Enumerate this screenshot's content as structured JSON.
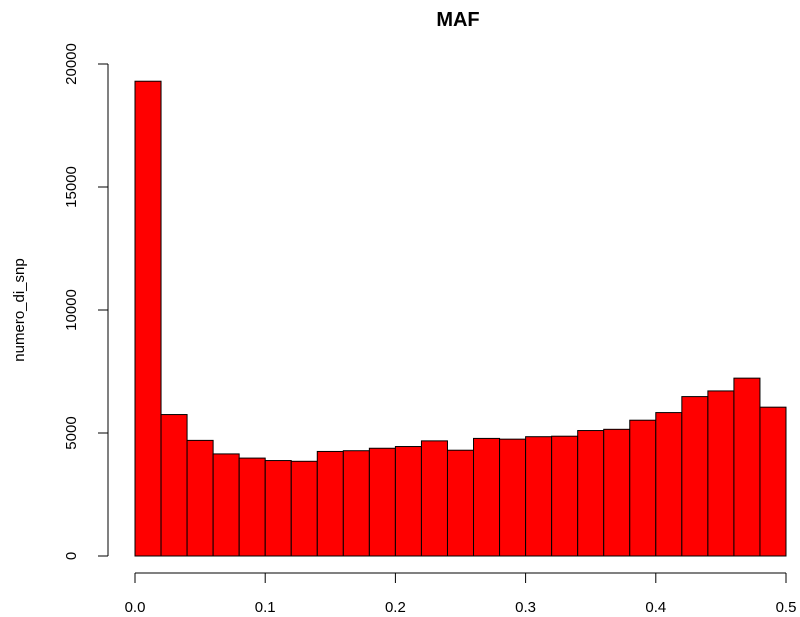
{
  "chart_data": {
    "type": "bar",
    "title": "MAF",
    "xlabel": "",
    "ylabel": "numero_di_snp",
    "bar_color": "#ff0000",
    "edge_color": "#000000",
    "xlim": [
      0,
      0.5
    ],
    "ylim": [
      0,
      20000
    ],
    "x_ticks": [
      0.0,
      0.1,
      0.2,
      0.3,
      0.4,
      0.5
    ],
    "x_tick_labels": [
      "0.0",
      "0.1",
      "0.2",
      "0.3",
      "0.4",
      "0.5"
    ],
    "y_ticks": [
      0,
      5000,
      10000,
      15000,
      20000
    ],
    "y_tick_labels": [
      "0",
      "5000",
      "10000",
      "15000",
      "20000"
    ],
    "bin_width": 0.02,
    "bin_starts": [
      0.0,
      0.02,
      0.04,
      0.06,
      0.08,
      0.1,
      0.12,
      0.14,
      0.16,
      0.18,
      0.2,
      0.22,
      0.24,
      0.26,
      0.28,
      0.3,
      0.32,
      0.34,
      0.36,
      0.38,
      0.4,
      0.42,
      0.44,
      0.46,
      0.48
    ],
    "values": [
      19300,
      5750,
      4700,
      4150,
      3980,
      3880,
      3850,
      4250,
      4280,
      4380,
      4450,
      4680,
      4300,
      4780,
      4750,
      4850,
      4870,
      5100,
      5150,
      5520,
      5830,
      6480,
      6710,
      7230,
      6050
    ],
    "grid": false
  }
}
